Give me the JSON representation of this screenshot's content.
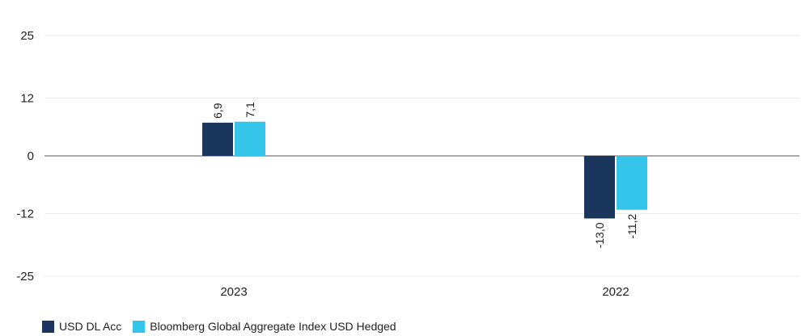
{
  "chart_data": {
    "type": "bar",
    "categories": [
      "2023",
      "2022"
    ],
    "series": [
      {
        "name": "USD DL Acc",
        "values": [
          6.9,
          -13.0
        ],
        "labels": [
          "6,9",
          "-13,0"
        ],
        "color": "#1b365d"
      },
      {
        "name": "Bloomberg Global Aggregate Index USD Hedged",
        "values": [
          7.1,
          -11.2
        ],
        "labels": [
          "7,1",
          "-11,2"
        ],
        "color": "#36c5ea"
      }
    ],
    "yticks": [
      25,
      12,
      0,
      -12,
      -25
    ],
    "ylim": [
      -25,
      25
    ],
    "grid": true,
    "legend_position": "bottom-left"
  }
}
